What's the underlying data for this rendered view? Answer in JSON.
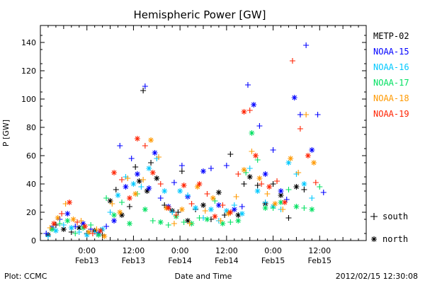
{
  "chart_data": {
    "type": "scatter",
    "title": "Hemispheric Power [GW]",
    "ylabel": "P [GW]",
    "xlabel": "Date and Time",
    "ylim": [
      0,
      152
    ],
    "y_ticks": [
      0,
      20,
      40,
      60,
      80,
      100,
      120,
      140
    ],
    "x_unit": "hours since 2012-02-12 12:00",
    "xlim": [
      0,
      84
    ],
    "x_ticks": [
      {
        "x": 12,
        "time": "0:00",
        "date": "Feb13"
      },
      {
        "x": 24,
        "time": "12:00",
        "date": "Feb13"
      },
      {
        "x": 36,
        "time": "0:00",
        "date": "Feb14"
      },
      {
        "x": 48,
        "time": "12:00",
        "date": "Feb14"
      },
      {
        "x": 60,
        "time": "0:00",
        "date": "Feb15"
      },
      {
        "x": 72,
        "time": "12:00",
        "date": "Feb15"
      }
    ],
    "legend_position": "right",
    "marker_legend": [
      {
        "marker": "+",
        "label": "south"
      },
      {
        "marker": "*",
        "label": "north"
      }
    ],
    "series": [
      {
        "name": "METP-02",
        "color": "#000000",
        "points": [
          [
            2,
            4,
            "*"
          ],
          [
            4,
            11,
            "+"
          ],
          [
            6,
            8,
            "*"
          ],
          [
            8,
            6,
            "+"
          ],
          [
            10,
            9,
            "*"
          ],
          [
            12,
            5,
            "+"
          ],
          [
            14,
            7,
            "*"
          ],
          [
            16,
            4,
            "+"
          ],
          [
            18,
            28,
            "*"
          ],
          [
            19.5,
            36,
            "+"
          ],
          [
            21,
            18,
            "*"
          ],
          [
            23,
            24,
            "+"
          ],
          [
            24.5,
            52,
            "+"
          ],
          [
            25.5,
            42,
            "*"
          ],
          [
            26.5,
            106,
            "+"
          ],
          [
            27.5,
            35,
            "*"
          ],
          [
            28.5,
            55,
            "+"
          ],
          [
            30,
            44,
            "*"
          ],
          [
            32,
            25,
            "+"
          ],
          [
            34,
            21,
            "*"
          ],
          [
            35.5,
            20,
            "+"
          ],
          [
            36.5,
            49,
            "+"
          ],
          [
            38,
            14,
            "*"
          ],
          [
            40,
            22,
            "+"
          ],
          [
            42,
            25,
            "*"
          ],
          [
            44,
            15,
            "+"
          ],
          [
            46,
            34,
            "*"
          ],
          [
            47.5,
            18,
            "+"
          ],
          [
            49,
            61,
            "+"
          ],
          [
            51,
            18,
            "*"
          ],
          [
            52.5,
            40,
            "+"
          ],
          [
            54,
            45,
            "*"
          ],
          [
            56,
            39,
            "+"
          ],
          [
            58,
            26,
            "*"
          ],
          [
            60,
            40,
            "+"
          ],
          [
            62,
            32,
            "*"
          ],
          [
            64,
            16,
            "+"
          ],
          [
            66,
            38,
            "*"
          ],
          [
            68,
            36,
            "+"
          ]
        ]
      },
      {
        "name": "NOAA-15",
        "color": "#0000ff",
        "points": [
          [
            1.5,
            5,
            "+"
          ],
          [
            3,
            9,
            "*"
          ],
          [
            5,
            15,
            "+"
          ],
          [
            7,
            19,
            "*"
          ],
          [
            9,
            10,
            "+"
          ],
          [
            11,
            12,
            "*"
          ],
          [
            13,
            8,
            "+"
          ],
          [
            15,
            5,
            "*"
          ],
          [
            17,
            10,
            "+"
          ],
          [
            19,
            14,
            "*"
          ],
          [
            20.5,
            67,
            "+"
          ],
          [
            22,
            38,
            "*"
          ],
          [
            23.5,
            58,
            "+"
          ],
          [
            25,
            47,
            "*"
          ],
          [
            27,
            109,
            "+"
          ],
          [
            28,
            37,
            "*"
          ],
          [
            29.5,
            62,
            "*"
          ],
          [
            31,
            30,
            "+"
          ],
          [
            33,
            24,
            "*"
          ],
          [
            34.5,
            41,
            "+"
          ],
          [
            36.5,
            53,
            "+"
          ],
          [
            38,
            31,
            "*"
          ],
          [
            40,
            23,
            "+"
          ],
          [
            42,
            49,
            "*"
          ],
          [
            44,
            51,
            "+"
          ],
          [
            46,
            25,
            "*"
          ],
          [
            48,
            53,
            "+"
          ],
          [
            50,
            22,
            "*"
          ],
          [
            52,
            24,
            "+"
          ],
          [
            53.5,
            110,
            "+"
          ],
          [
            55,
            96,
            "*"
          ],
          [
            56.5,
            81,
            "+"
          ],
          [
            58,
            47,
            "*"
          ],
          [
            60,
            64,
            "+"
          ],
          [
            62,
            35,
            "*"
          ],
          [
            63.5,
            29,
            "+"
          ],
          [
            65.5,
            101,
            "*"
          ],
          [
            67,
            89,
            "+"
          ],
          [
            68.5,
            138,
            "+"
          ],
          [
            70,
            64,
            "*"
          ],
          [
            71.5,
            89,
            "+"
          ],
          [
            73,
            34,
            "+"
          ]
        ]
      },
      {
        "name": "NOAA-16",
        "color": "#00c8ff",
        "points": [
          [
            2,
            3,
            "+"
          ],
          [
            4,
            7,
            "*"
          ],
          [
            6,
            11,
            "+"
          ],
          [
            8,
            9,
            "*"
          ],
          [
            10,
            6,
            "+"
          ],
          [
            12,
            4,
            "*"
          ],
          [
            14,
            6,
            "+"
          ],
          [
            16,
            8,
            "*"
          ],
          [
            18,
            20,
            "+"
          ],
          [
            20,
            32,
            "*"
          ],
          [
            22,
            45,
            "+"
          ],
          [
            24,
            40,
            "*"
          ],
          [
            26,
            38,
            "+"
          ],
          [
            28,
            51,
            "*"
          ],
          [
            30,
            58,
            "+"
          ],
          [
            32,
            35,
            "*"
          ],
          [
            34,
            20,
            "+"
          ],
          [
            36,
            35,
            "*"
          ],
          [
            38,
            32,
            "+"
          ],
          [
            40,
            23,
            "*"
          ],
          [
            42,
            16,
            "+"
          ],
          [
            44,
            22,
            "*"
          ],
          [
            46,
            14,
            "+"
          ],
          [
            48,
            21,
            "*"
          ],
          [
            50,
            25,
            "+"
          ],
          [
            52,
            19,
            "*"
          ],
          [
            54,
            51,
            "+"
          ],
          [
            56,
            35,
            "*"
          ],
          [
            58,
            27,
            "+"
          ],
          [
            60,
            24,
            "*"
          ],
          [
            62,
            22,
            "+"
          ],
          [
            64,
            55,
            "*"
          ],
          [
            66,
            47,
            "+"
          ],
          [
            68,
            40,
            "*"
          ],
          [
            70,
            30,
            "+"
          ]
        ]
      },
      {
        "name": "NOAA-17",
        "color": "#00e060",
        "points": [
          [
            3,
            8,
            "*"
          ],
          [
            5,
            12,
            "+"
          ],
          [
            7,
            14,
            "*"
          ],
          [
            9,
            5,
            "+"
          ],
          [
            11,
            9,
            "*"
          ],
          [
            13,
            11,
            "+"
          ],
          [
            15,
            4,
            "*"
          ],
          [
            17,
            30,
            "+"
          ],
          [
            19,
            18,
            "*"
          ],
          [
            21,
            27,
            "+"
          ],
          [
            23,
            12,
            "*"
          ],
          [
            25,
            33,
            "+"
          ],
          [
            27,
            22,
            "*"
          ],
          [
            29,
            14,
            "+"
          ],
          [
            31,
            13,
            "*"
          ],
          [
            33,
            11,
            "+"
          ],
          [
            35,
            17,
            "*"
          ],
          [
            37,
            13,
            "+"
          ],
          [
            39,
            12,
            "*"
          ],
          [
            41,
            16,
            "+"
          ],
          [
            43,
            15,
            "*"
          ],
          [
            45,
            28,
            "+"
          ],
          [
            47,
            12,
            "*"
          ],
          [
            49,
            13,
            "+"
          ],
          [
            51,
            14,
            "*"
          ],
          [
            53,
            48,
            "+"
          ],
          [
            54.5,
            76,
            "*"
          ],
          [
            56,
            57,
            "+"
          ],
          [
            58,
            23,
            "*"
          ],
          [
            60,
            23,
            "+"
          ],
          [
            62,
            27,
            "*"
          ],
          [
            64,
            36,
            "+"
          ],
          [
            66,
            24,
            "*"
          ],
          [
            68,
            23,
            "+"
          ],
          [
            70,
            22,
            "*"
          ],
          [
            72,
            38,
            "+"
          ]
        ]
      },
      {
        "name": "NOAA-18",
        "color": "#ff9900",
        "points": [
          [
            2.5,
            9,
            "+"
          ],
          [
            4.5,
            16,
            "*"
          ],
          [
            6.5,
            26,
            "+"
          ],
          [
            8.5,
            15,
            "*"
          ],
          [
            10.5,
            14,
            "+"
          ],
          [
            12.5,
            6,
            "*"
          ],
          [
            14.5,
            8,
            "+"
          ],
          [
            16.5,
            3,
            "*"
          ],
          [
            18.5,
            26,
            "+"
          ],
          [
            20.5,
            20,
            "*"
          ],
          [
            22.5,
            44,
            "+"
          ],
          [
            24.5,
            33,
            "*"
          ],
          [
            26.5,
            43,
            "+"
          ],
          [
            28.5,
            71,
            "*"
          ],
          [
            30.5,
            59,
            "+"
          ],
          [
            32.5,
            23,
            "*"
          ],
          [
            34.5,
            12,
            "+"
          ],
          [
            36.5,
            22,
            "*"
          ],
          [
            38.5,
            12,
            "+"
          ],
          [
            40.5,
            38,
            "*"
          ],
          [
            42.5,
            21,
            "+"
          ],
          [
            44.5,
            30,
            "*"
          ],
          [
            46.5,
            14,
            "+"
          ],
          [
            48.5,
            19,
            "*"
          ],
          [
            50.5,
            31,
            "+"
          ],
          [
            52.5,
            50,
            "*"
          ],
          [
            54.5,
            63,
            "+"
          ],
          [
            56.5,
            44,
            "*"
          ],
          [
            58.5,
            33,
            "+"
          ],
          [
            60.5,
            26,
            "*"
          ],
          [
            62.5,
            22,
            "+"
          ],
          [
            64.5,
            58,
            "*"
          ],
          [
            66.5,
            48,
            "+"
          ],
          [
            68.5,
            89,
            "+"
          ],
          [
            70.5,
            55,
            "*"
          ]
        ]
      },
      {
        "name": "NOAA-19",
        "color": "#ff2200",
        "points": [
          [
            3.5,
            12,
            "*"
          ],
          [
            5.5,
            19,
            "+"
          ],
          [
            7.5,
            27,
            "*"
          ],
          [
            9.5,
            13,
            "+"
          ],
          [
            11.5,
            10,
            "*"
          ],
          [
            13.5,
            5,
            "+"
          ],
          [
            15.5,
            7,
            "*"
          ],
          [
            19,
            48,
            "*"
          ],
          [
            21,
            43,
            "+"
          ],
          [
            23,
            30,
            "*"
          ],
          [
            25,
            72,
            "*"
          ],
          [
            27,
            67,
            "+"
          ],
          [
            29,
            48,
            "*"
          ],
          [
            31,
            40,
            "+"
          ],
          [
            33,
            23,
            "*"
          ],
          [
            35,
            18,
            "+"
          ],
          [
            37,
            39,
            "*"
          ],
          [
            39,
            26,
            "+"
          ],
          [
            41,
            40,
            "*"
          ],
          [
            43,
            33,
            "+"
          ],
          [
            45,
            17,
            "*"
          ],
          [
            47,
            25,
            "+"
          ],
          [
            49,
            20,
            "*"
          ],
          [
            51,
            47,
            "+"
          ],
          [
            52.5,
            91,
            "*"
          ],
          [
            54,
            92,
            "+"
          ],
          [
            55.5,
            60,
            "*"
          ],
          [
            57,
            40,
            "+"
          ],
          [
            59,
            38,
            "*"
          ],
          [
            61,
            42,
            "+"
          ],
          [
            63,
            27,
            "*"
          ],
          [
            65,
            127,
            "+"
          ],
          [
            67,
            79,
            "+"
          ],
          [
            69,
            60,
            "*"
          ],
          [
            71,
            41,
            "+"
          ]
        ]
      }
    ]
  },
  "footer": {
    "plot_source": "Plot: CCMC",
    "timestamp": "2012/02/15 12:30:08"
  }
}
